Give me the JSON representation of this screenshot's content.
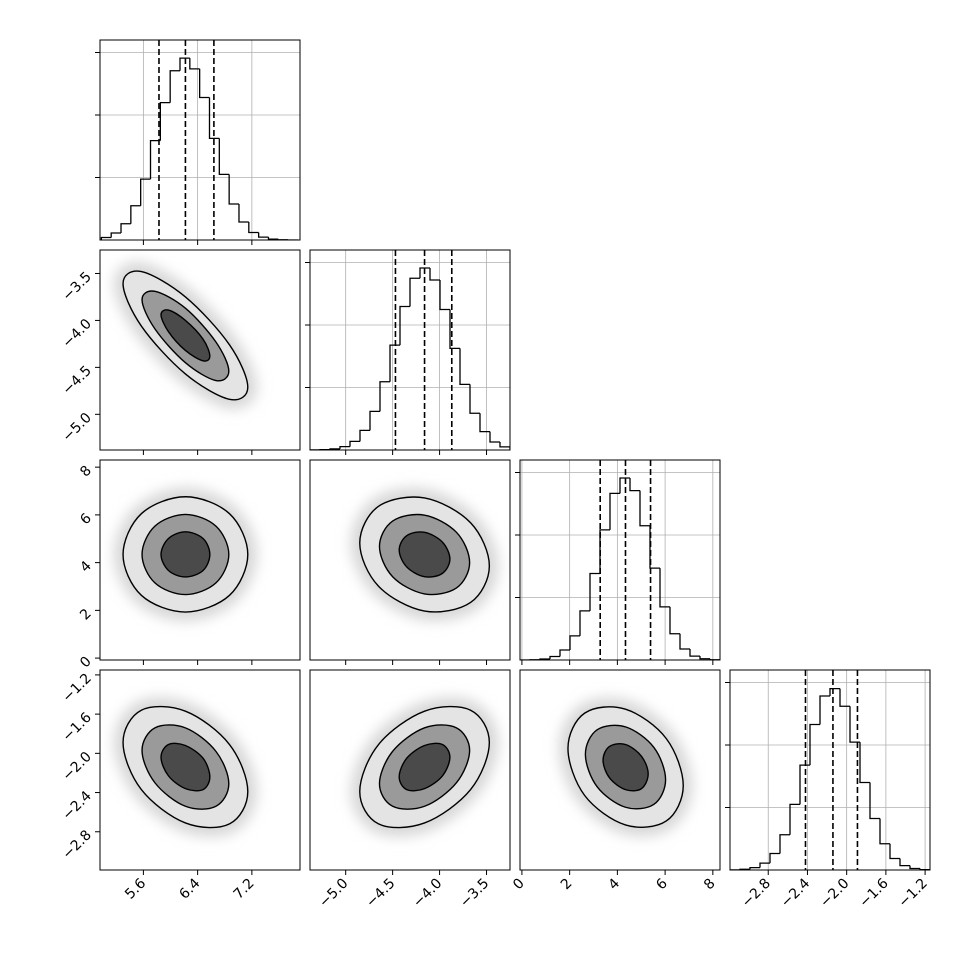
{
  "chart_data": {
    "type": "corner",
    "grid": true,
    "line_color": "#000000",
    "grid_color": "#b0b0b0",
    "contour_fills": [
      "#4a4a4a",
      "#9a9a9a",
      "#e4e4e4"
    ],
    "haze_color": "#d6d6d6",
    "params": [
      {
        "lim": [
          4.96,
          7.91
        ],
        "ticks": [
          5.6,
          6.4,
          7.2
        ]
      },
      {
        "lim": [
          -5.38,
          -3.25
        ],
        "ticks": [
          {
            "value": -5.0,
            "label": "−5.0"
          },
          {
            "value": -4.5,
            "label": "−4.5"
          },
          {
            "value": -4.0,
            "label": "−4.0"
          },
          {
            "value": -3.5,
            "label": "−3.5"
          }
        ]
      },
      {
        "lim": [
          -0.08,
          8.3
        ],
        "ticks": [
          0,
          2,
          4,
          6,
          8
        ]
      },
      {
        "lim": [
          -3.19,
          -1.15
        ],
        "ticks": [
          {
            "value": -2.8,
            "label": "−2.8"
          },
          {
            "value": -2.4,
            "label": "−2.4"
          },
          {
            "value": -2.0,
            "label": "−2.0"
          },
          {
            "value": -1.6,
            "label": "−1.6"
          },
          {
            "value": -1.2,
            "label": "−1.2"
          }
        ]
      }
    ],
    "histograms": [
      {
        "bins": [
          4.98,
          5.125,
          5.27,
          5.415,
          5.56,
          5.705,
          5.85,
          5.995,
          6.14,
          6.285,
          6.43,
          6.575,
          6.72,
          6.865,
          7.01,
          7.155,
          7.3,
          7.445,
          7.59,
          7.735,
          7.88
        ],
        "counts": [
          20,
          56,
          130,
          274,
          487,
          795,
          1099,
          1354,
          1455,
          1369,
          1140,
          813,
          525,
          288,
          144,
          60,
          23,
          7,
          2,
          0
        ],
        "quantiles": [
          5.83,
          6.22,
          6.64
        ],
        "ylim": [
          0,
          1600
        ],
        "yticks": [
          500,
          1000,
          1500
        ]
      },
      {
        "bins": [
          -5.38,
          -5.2735,
          -5.167,
          -5.0605,
          -4.954,
          -4.8475,
          -4.741,
          -4.6345,
          -4.528,
          -4.4215,
          -4.315,
          -4.2085,
          -4.102,
          -3.9955,
          -3.889,
          -3.7825,
          -3.676,
          -3.5695,
          -3.463,
          -3.3565,
          -3.25
        ],
        "counts": [
          1,
          3,
          9,
          27,
          69,
          157,
          309,
          546,
          839,
          1148,
          1374,
          1456,
          1360,
          1124,
          813,
          525,
          294,
          147,
          64,
          25
        ],
        "quantiles": [
          -4.47,
          -4.16,
          -3.87
        ],
        "ylim": [
          0,
          1600
        ],
        "yticks": [
          500,
          1000,
          1500
        ]
      },
      {
        "bins": [
          -0.08,
          0.339,
          0.758,
          1.177,
          1.596,
          2.015,
          2.434,
          2.853,
          3.272,
          3.691,
          4.11,
          4.529,
          4.948,
          5.367,
          5.786,
          6.205,
          6.624,
          7.043,
          7.462,
          7.881,
          8.3
        ],
        "counts": [
          0,
          2,
          8,
          28,
          80,
          193,
          393,
          692,
          1041,
          1333,
          1456,
          1355,
          1074,
          735,
          425,
          210,
          88,
          31,
          10,
          2
        ],
        "quantiles": [
          3.28,
          4.34,
          5.39
        ],
        "ylim": [
          0,
          1600
        ],
        "yticks": [
          500,
          1000,
          1500
        ]
      },
      {
        "bins": [
          -3.19,
          -3.088,
          -2.986,
          -2.884,
          -2.782,
          -2.68,
          -2.578,
          -2.476,
          -2.374,
          -2.272,
          -2.17,
          -2.068,
          -1.966,
          -1.864,
          -1.762,
          -1.66,
          -1.558,
          -1.456,
          -1.354,
          -1.252,
          -1.15
        ],
        "counts": [
          1,
          6,
          19,
          55,
          132,
          282,
          525,
          839,
          1164,
          1392,
          1451,
          1310,
          1023,
          700,
          412,
          210,
          92,
          35,
          12,
          3
        ],
        "quantiles": [
          -2.42,
          -2.14,
          -1.89
        ],
        "ylim": [
          0,
          1600
        ],
        "yticks": [
          500,
          1000,
          1500
        ]
      }
    ],
    "pairs": [
      [
        {
          "contours": [
            {
              "x": [
                6.58,
                6.48,
                6.22,
                5.97,
                5.86,
                5.97,
                6.22,
                6.48
              ],
              "y": [
                -4.38,
                -4.2,
                -4.0,
                -3.89,
                -3.94,
                -4.12,
                -4.32,
                -4.43
              ]
            },
            {
              "x": [
                6.86,
                6.67,
                6.22,
                5.77,
                5.58,
                5.77,
                6.22,
                6.67
              ],
              "y": [
                -4.54,
                -4.23,
                -3.87,
                -3.69,
                -3.78,
                -4.09,
                -4.45,
                -4.64
              ]
            },
            {
              "x": [
                7.14,
                6.87,
                6.22,
                5.57,
                5.3,
                5.57,
                6.22,
                6.87
              ],
              "y": [
                -4.71,
                -4.26,
                -3.75,
                -3.48,
                -3.61,
                -4.06,
                -4.57,
                -4.84
              ]
            }
          ]
        }
      ],
      [
        {
          "contours": [
            {
              "x": [
                6.58,
                6.48,
                6.22,
                5.97,
                5.86,
                5.97,
                6.22,
                6.48
              ],
              "y": [
                4.34,
                5.01,
                5.29,
                5.01,
                4.34,
                3.67,
                3.4,
                3.67
              ]
            },
            {
              "x": [
                6.86,
                6.67,
                6.22,
                5.77,
                5.58,
                5.77,
                6.22,
                6.67
              ],
              "y": [
                4.34,
                5.53,
                6.02,
                5.53,
                4.34,
                3.15,
                2.66,
                3.15
              ]
            },
            {
              "x": [
                7.14,
                6.87,
                6.22,
                5.57,
                5.3,
                5.57,
                6.22,
                6.87
              ],
              "y": [
                4.34,
                6.05,
                6.76,
                6.05,
                4.34,
                2.63,
                1.93,
                2.63
              ]
            }
          ]
        },
        {
          "contours": [
            {
              "x": [
                -3.89,
                -3.97,
                -4.16,
                -4.35,
                -4.43,
                -4.35,
                -4.16,
                -3.97
              ],
              "y": [
                4.15,
                4.86,
                5.27,
                5.13,
                4.53,
                3.82,
                3.41,
                3.55
              ]
            },
            {
              "x": [
                -3.68,
                -3.82,
                -4.16,
                -4.5,
                -4.64,
                -4.5,
                -4.16,
                -3.82
              ],
              "y": [
                4.0,
                5.27,
                5.99,
                5.74,
                4.68,
                3.41,
                2.69,
                2.94
              ]
            },
            {
              "x": [
                -3.47,
                -3.67,
                -4.16,
                -4.65,
                -4.85,
                -4.65,
                -4.16,
                -3.67
              ],
              "y": [
                3.86,
                5.67,
                6.71,
                6.36,
                4.82,
                3.01,
                1.97,
                2.33
              ]
            }
          ]
        }
      ],
      [
        {
          "contours": [
            {
              "x": [
                6.58,
                6.48,
                6.22,
                5.97,
                5.86,
                5.97,
                6.22,
                6.48
              ],
              "y": [
                -2.24,
                -2.05,
                -1.92,
                -1.91,
                -2.04,
                -2.23,
                -2.36,
                -2.37
              ]
            },
            {
              "x": [
                6.86,
                6.67,
                6.22,
                5.77,
                5.58,
                5.77,
                6.22,
                6.67
              ],
              "y": [
                -2.31,
                -1.98,
                -1.74,
                -1.74,
                -1.97,
                -2.3,
                -2.54,
                -2.54
              ]
            },
            {
              "x": [
                7.14,
                6.87,
                6.22,
                5.57,
                5.3,
                5.57,
                6.22,
                6.87
              ],
              "y": [
                -2.39,
                -1.91,
                -1.57,
                -1.56,
                -1.89,
                -2.37,
                -2.71,
                -2.72
              ]
            }
          ]
        },
        {
          "contours": [
            {
              "x": [
                -3.89,
                -3.97,
                -4.16,
                -4.35,
                -4.43,
                -4.35,
                -4.16,
                -3.97
              ],
              "y": [
                -2.04,
                -1.91,
                -1.92,
                -2.05,
                -2.24,
                -2.37,
                -2.36,
                -2.23
              ]
            },
            {
              "x": [
                -3.68,
                -3.82,
                -4.16,
                -4.5,
                -4.64,
                -4.5,
                -4.16,
                -3.82
              ],
              "y": [
                -1.97,
                -1.74,
                -1.74,
                -1.98,
                -2.31,
                -2.54,
                -2.54,
                -2.3
              ]
            },
            {
              "x": [
                -3.47,
                -3.67,
                -4.16,
                -4.65,
                -4.85,
                -4.65,
                -4.16,
                -3.67
              ],
              "y": [
                -1.89,
                -1.56,
                -1.57,
                -1.91,
                -2.39,
                -2.72,
                -2.71,
                -2.37
              ]
            }
          ]
        },
        {
          "contours": [
            {
              "x": [
                5.29,
                5.01,
                4.34,
                3.67,
                3.4,
                3.67,
                4.34,
                5.01
              ],
              "y": [
                -2.21,
                -2.03,
                -1.91,
                -1.93,
                -2.07,
                -2.25,
                -2.37,
                -2.36
              ]
            },
            {
              "x": [
                6.02,
                5.53,
                4.34,
                3.15,
                2.66,
                3.15,
                4.34,
                5.53
              ],
              "y": [
                -2.27,
                -1.94,
                -1.73,
                -1.76,
                -2.01,
                -2.34,
                -2.55,
                -2.52
              ]
            },
            {
              "x": [
                6.76,
                6.05,
                4.34,
                2.63,
                1.93,
                2.63,
                4.34,
                6.05
              ],
              "y": [
                -2.33,
                -1.85,
                -1.55,
                -1.59,
                -1.95,
                -2.43,
                -2.73,
                -2.69
              ]
            }
          ]
        }
      ]
    ]
  }
}
